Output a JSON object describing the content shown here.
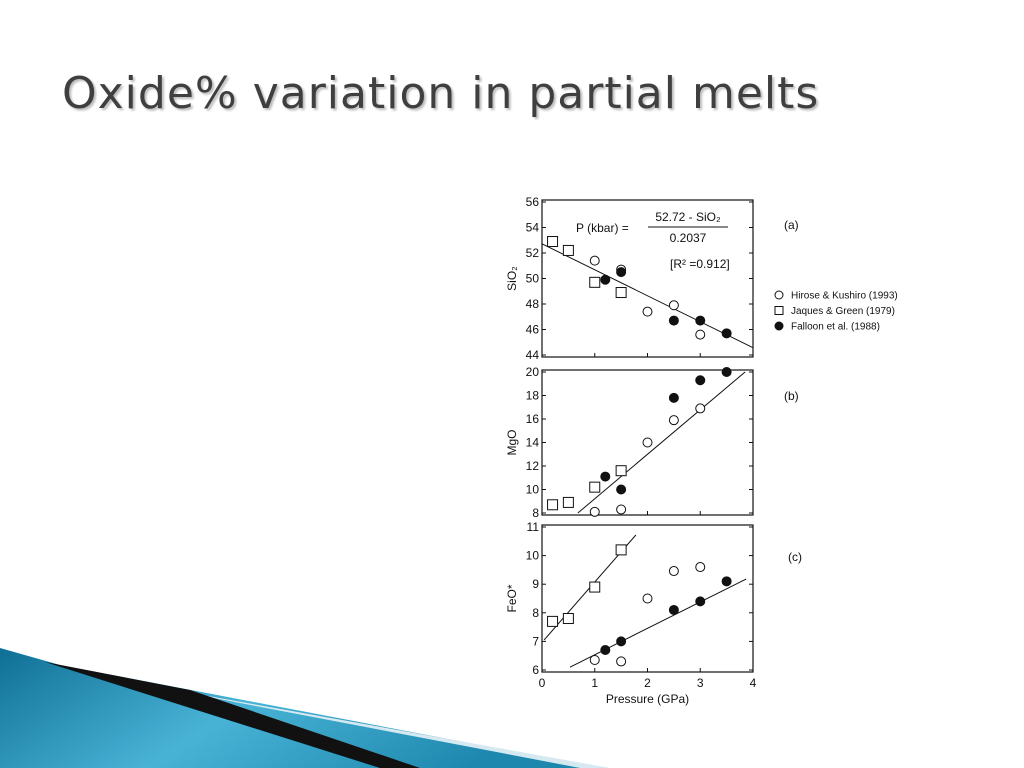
{
  "title": "Oxide% variation in partial melts",
  "equation": {
    "lhs": "P (kbar) =",
    "numerator": "52.72 - SiO₂",
    "denominator": "0.2037",
    "r2": "[R² =0.912]"
  },
  "chart_data": [
    {
      "type": "scatter",
      "panel": "(a)",
      "ylabel": "SiO₂",
      "xlim": [
        0,
        4
      ],
      "xticks": [
        0,
        1,
        2,
        3,
        4
      ],
      "ylim": [
        44,
        56
      ],
      "yticks": [
        44,
        46,
        48,
        50,
        52,
        54,
        56
      ],
      "series": [
        {
          "name": "Hirose & Kushiro (1993)",
          "marker": "circle-open",
          "x": [
            1.0,
            1.5,
            2.0,
            2.5,
            3.0
          ],
          "values": [
            51.4,
            50.7,
            47.4,
            47.9,
            45.6
          ]
        },
        {
          "name": "Jaques & Green (1979)",
          "marker": "square-open",
          "x": [
            0.2,
            0.5,
            1.0,
            1.5
          ],
          "values": [
            52.9,
            52.2,
            49.7,
            48.9
          ]
        },
        {
          "name": "Falloon et al. (1988)",
          "marker": "circle-filled",
          "x": [
            1.2,
            1.5,
            2.5,
            3.0,
            3.5
          ],
          "values": [
            49.9,
            50.5,
            46.7,
            46.7,
            45.7
          ]
        }
      ],
      "lines": [
        {
          "x": [
            0,
            4
          ],
          "values": [
            52.72,
            44.57
          ]
        }
      ]
    },
    {
      "type": "scatter",
      "panel": "(b)",
      "ylabel": "MgO",
      "xlim": [
        0,
        4
      ],
      "xticks": [
        0,
        1,
        2,
        3,
        4
      ],
      "ylim": [
        8,
        20
      ],
      "yticks": [
        8,
        10,
        12,
        14,
        16,
        18,
        20
      ],
      "series": [
        {
          "marker": "circle-open",
          "x": [
            1.0,
            1.5,
            2.0,
            2.5,
            3.0
          ],
          "values": [
            8.1,
            8.3,
            14.0,
            15.9,
            16.9
          ]
        },
        {
          "marker": "square-open",
          "x": [
            0.2,
            0.5,
            1.0,
            1.5
          ],
          "values": [
            8.7,
            8.9,
            10.2,
            11.6
          ]
        },
        {
          "marker": "circle-filled",
          "x": [
            1.2,
            1.5,
            2.5,
            3.0,
            3.5
          ],
          "values": [
            11.1,
            10.0,
            17.8,
            19.3,
            20.0
          ]
        }
      ],
      "lines": [
        {
          "x": [
            0.68,
            3.85
          ],
          "values": [
            8,
            20
          ]
        }
      ]
    },
    {
      "type": "scatter",
      "panel": "(c)",
      "ylabel": "FeO*",
      "xlabel": "Pressure (GPa)",
      "xlim": [
        0,
        4
      ],
      "xticks": [
        0,
        1,
        2,
        3,
        4
      ],
      "ylim": [
        6,
        11
      ],
      "yticks": [
        6,
        7,
        8,
        9,
        10,
        11
      ],
      "series": [
        {
          "marker": "circle-open",
          "x": [
            1.0,
            1.5,
            2.0,
            2.5,
            3.0
          ],
          "values": [
            6.35,
            6.3,
            8.5,
            9.46,
            9.6
          ]
        },
        {
          "marker": "square-open",
          "x": [
            0.2,
            0.5,
            1.0,
            1.5
          ],
          "values": [
            7.7,
            7.8,
            8.9,
            10.2
          ]
        },
        {
          "marker": "circle-filled",
          "x": [
            1.2,
            1.5,
            2.5,
            3.0,
            3.5
          ],
          "values": [
            6.7,
            7.0,
            8.1,
            8.4,
            9.1
          ]
        }
      ],
      "lines": [
        {
          "x": [
            0.04,
            1.78
          ],
          "values": [
            7.05,
            10.72
          ]
        },
        {
          "x": [
            0.53,
            3.87
          ],
          "values": [
            6.1,
            9.18
          ]
        }
      ]
    }
  ]
}
